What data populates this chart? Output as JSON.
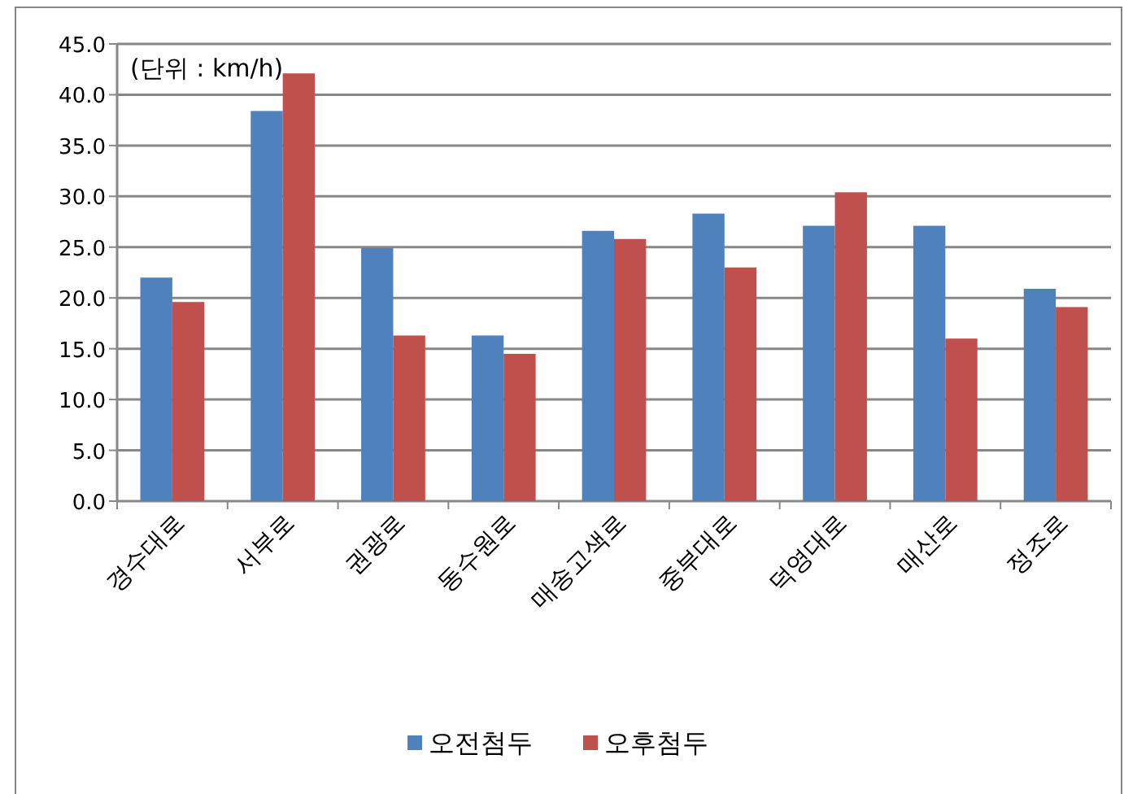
{
  "chart_data": {
    "type": "bar",
    "categories": [
      "경수대로",
      "서부로",
      "권광로",
      "동수원로",
      "매송고색로",
      "중부대로",
      "덕영대로",
      "매산로",
      "정조로"
    ],
    "series": [
      {
        "name": "오전첨두",
        "color": "#4f81bd",
        "values": [
          22.0,
          38.4,
          24.9,
          16.3,
          26.6,
          28.3,
          27.1,
          27.1,
          20.9
        ]
      },
      {
        "name": "오후첨두",
        "color": "#c0504d",
        "values": [
          19.6,
          42.1,
          16.3,
          14.5,
          25.8,
          23.0,
          30.4,
          16.0,
          19.1
        ]
      }
    ],
    "ylim": [
      0,
      45
    ],
    "yticks": [
      {
        "value": 0,
        "label": "0.0"
      },
      {
        "value": 5,
        "label": "5.0"
      },
      {
        "value": 10,
        "label": "10.0"
      },
      {
        "value": 15,
        "label": "15.0"
      },
      {
        "value": 20,
        "label": "20.0"
      },
      {
        "value": 25,
        "label": "25.0"
      },
      {
        "value": 30,
        "label": "30.0"
      },
      {
        "value": 35,
        "label": "35.0"
      },
      {
        "value": 40,
        "label": "40.0"
      },
      {
        "value": 45,
        "label": "45.0"
      }
    ],
    "grid": "y",
    "legend": "bottom",
    "annotations": [
      "(단위 : km/h)"
    ]
  }
}
